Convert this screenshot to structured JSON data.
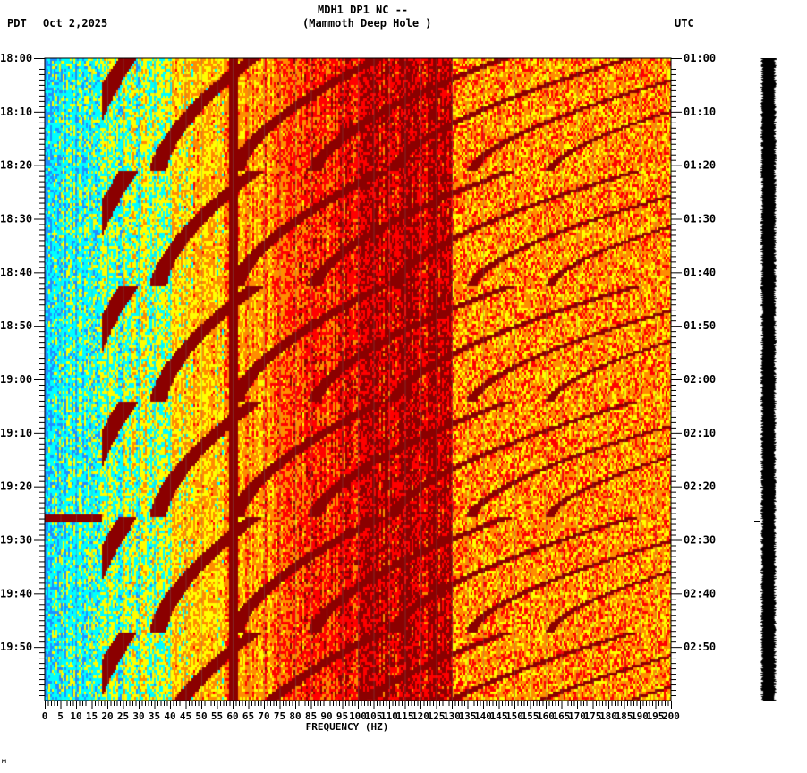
{
  "header": {
    "title_line1": "MDH1 DP1 NC --",
    "title_line2": "(Mammoth Deep Hole )",
    "left_tz": "PDT",
    "date": "Oct 2,2025",
    "right_tz": "UTC"
  },
  "footer_mark": "м",
  "chart_data": {
    "type": "heatmap",
    "title": "MDH1 DP1 NC -- (Mammoth Deep Hole )",
    "xlabel": "FREQUENCY (HZ)",
    "xlim": [
      0,
      200
    ],
    "x_ticks": [
      "0",
      "5",
      "10",
      "15",
      "20",
      "25",
      "30",
      "35",
      "40",
      "45",
      "50",
      "55",
      "60",
      "65",
      "70",
      "75",
      "80",
      "85",
      "90",
      "95",
      "100",
      "105",
      "110",
      "115",
      "120",
      "125",
      "130",
      "135",
      "140",
      "145",
      "150",
      "155",
      "160",
      "165",
      "170",
      "175",
      "180",
      "185",
      "190",
      "195",
      "200"
    ],
    "ylim_minutes": [
      0,
      120
    ],
    "y_ticks_left": [
      "18:00",
      "18:10",
      "18:20",
      "18:30",
      "18:40",
      "18:50",
      "19:00",
      "19:10",
      "19:20",
      "19:30",
      "19:40",
      "19:50"
    ],
    "y_ticks_right": [
      "01:00",
      "01:10",
      "01:20",
      "01:30",
      "01:40",
      "01:50",
      "02:00",
      "02:10",
      "02:20",
      "02:30",
      "02:40",
      "02:50"
    ],
    "colormap": [
      "#1e90ff",
      "#00ffff",
      "#ffff00",
      "#ff8c00",
      "#ff0000",
      "#8b0000"
    ],
    "features": {
      "chirp_cycle_minutes": 21.5,
      "chirp_start_hz": 20,
      "chirp_end_hz": 48,
      "persistent_line_hz": 60,
      "low_freq_event_time": "19:26"
    }
  }
}
